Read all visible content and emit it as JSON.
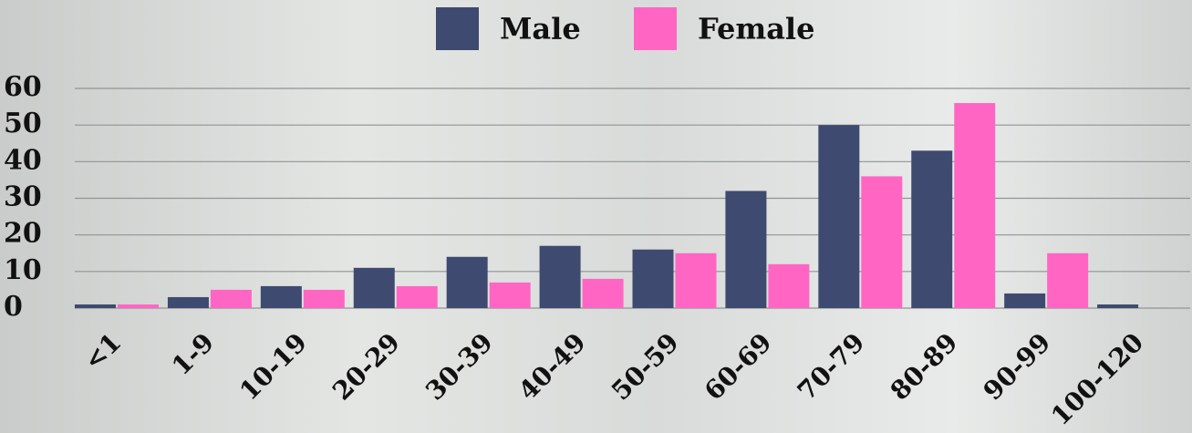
{
  "chart_data": {
    "type": "bar",
    "categories": [
      "<1",
      "1-9",
      "10-19",
      "20-29",
      "30-39",
      "40-49",
      "50-59",
      "60-69",
      "70-79",
      "80-89",
      "90-99",
      "100-120"
    ],
    "series": [
      {
        "name": "Male",
        "color": "#3e4a6f",
        "values": [
          1,
          3,
          6,
          11,
          14,
          17,
          16,
          32,
          50,
          43,
          4,
          1
        ]
      },
      {
        "name": "Female",
        "color": "#ff66c4",
        "values": [
          1,
          5,
          5,
          6,
          7,
          8,
          15,
          12,
          36,
          56,
          15,
          0
        ]
      }
    ],
    "ylim": [
      0,
      60
    ],
    "yticks": [
      0,
      10,
      20,
      30,
      40,
      50,
      60
    ],
    "grid": true,
    "legend": "top"
  }
}
